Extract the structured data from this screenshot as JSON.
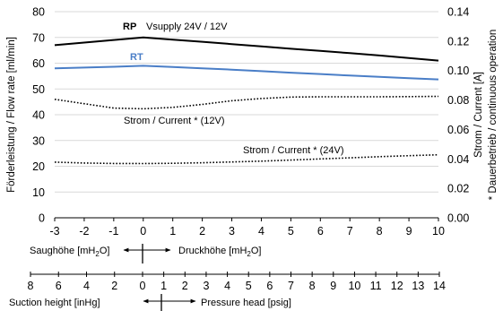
{
  "chart_data": {
    "type": "line",
    "x": [
      -3,
      -2,
      -1,
      0,
      1,
      2,
      3,
      4,
      5,
      6,
      7,
      8,
      9,
      10
    ],
    "ylabel": "Förderleistung / Flow rate [ml/min]",
    "ylim": [
      0,
      80
    ],
    "y_ticks": [
      "0",
      "10",
      "20",
      "30",
      "40",
      "50",
      "60",
      "70",
      "80"
    ],
    "y2label": "Strom / Current [A]",
    "y2label_note": "* Dauerbetrieb / continuous operation",
    "y2lim": [
      0,
      0.14
    ],
    "y2_ticks": [
      "0.00",
      "0.02",
      "0.04",
      "0.06",
      "0.08",
      "0.10",
      "0.12",
      "0.14"
    ],
    "x_ticks": [
      "-3",
      "-2",
      "-1",
      "0",
      "1",
      "2",
      "3",
      "4",
      "5",
      "6",
      "7",
      "8",
      "9",
      "10"
    ],
    "grid": "horizontal",
    "series": [
      {
        "name": "RP",
        "axis": "left",
        "color": "#000000",
        "style": "solid",
        "y": [
          67.0,
          68.0,
          69.0,
          70.0,
          69.1,
          68.3,
          67.4,
          66.5,
          65.6,
          64.8,
          63.9,
          63.0,
          62.0,
          61.0
        ]
      },
      {
        "name": "RT",
        "axis": "left",
        "color": "#4a7ec7",
        "style": "solid",
        "y": [
          58.0,
          58.3,
          58.6,
          59.0,
          58.5,
          58.0,
          57.5,
          56.9,
          56.3,
          55.8,
          55.2,
          54.7,
          54.2,
          53.7
        ]
      },
      {
        "name": "Strom / Current * (12V)",
        "axis": "right",
        "color": "#000000",
        "style": "dotted",
        "y": [
          0.0805,
          0.0775,
          0.0745,
          0.074,
          0.075,
          0.077,
          0.0795,
          0.081,
          0.082,
          0.0822,
          0.0822,
          0.0822,
          0.0823,
          0.0825
        ]
      },
      {
        "name": "Strom / Current * (24V)",
        "axis": "right",
        "color": "#000000",
        "style": "dotted",
        "y": [
          0.0378,
          0.0372,
          0.0369,
          0.0368,
          0.037,
          0.0374,
          0.0379,
          0.0385,
          0.0392,
          0.04,
          0.0407,
          0.0415,
          0.0422,
          0.0428
        ]
      }
    ],
    "annotations": {
      "rp": "RP",
      "vsupply": "Vsupply 24V / 12V",
      "rt": "RT",
      "current12": "Strom / Current * (12V)",
      "current24": "Strom / Current * (24V)"
    },
    "secondary_axes": {
      "metric": {
        "left_label": "Saughöhe [mH",
        "left_sub": "2",
        "left_end": "O]",
        "right_label": "Druckhöhe [mH",
        "right_sub": "2",
        "right_end": "O]"
      },
      "imperial": {
        "ticks": [
          "8",
          "6",
          "4",
          "2",
          "0",
          "1",
          "2",
          "3",
          "4",
          "5",
          "6",
          "7",
          "8",
          "9",
          "10",
          "11",
          "12",
          "13",
          "14"
        ],
        "tick_values": [
          -8,
          -6,
          -4,
          -2,
          0,
          1,
          2,
          3,
          4,
          5,
          6,
          7,
          8,
          9,
          10,
          11,
          12,
          13,
          14
        ],
        "left_label": "Suction height [inHg]",
        "right_label": "Pressure head [psig]"
      }
    }
  }
}
